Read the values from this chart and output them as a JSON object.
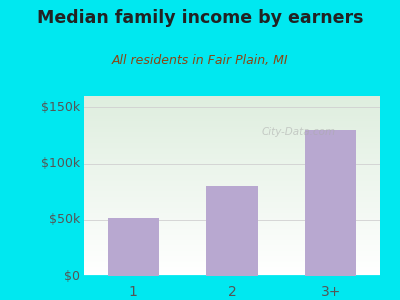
{
  "categories": [
    "1",
    "2",
    "3+"
  ],
  "values": [
    52000,
    80000,
    130000
  ],
  "bar_color": "#b8a8d0",
  "title": "Median family income by earners",
  "subtitle": "All residents in Fair Plain, MI",
  "title_color": "#222222",
  "subtitle_color": "#8b4513",
  "background_color": "#00e8f0",
  "yticks": [
    0,
    50000,
    100000,
    150000
  ],
  "ytick_labels": [
    "$0",
    "$50k",
    "$100k",
    "$150k"
  ],
  "ylim": [
    0,
    160000
  ],
  "grid_color": "#d0d0d0",
  "axis_color": "#00e8f0",
  "tick_color": "#555555",
  "watermark": "City-Data.com",
  "plot_bg_bottom": "#ffffff",
  "plot_bg_top": "#d8edd8"
}
